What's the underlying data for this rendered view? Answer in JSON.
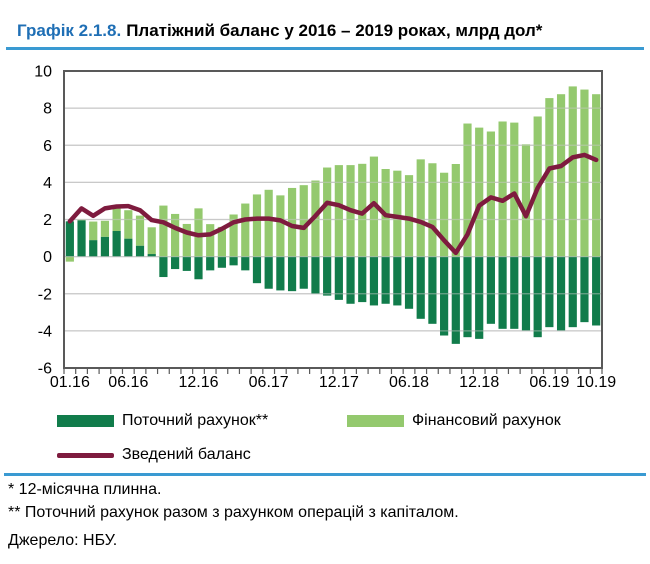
{
  "title": {
    "prefix": "Графік 2.1.8.",
    "text": "Платіжний баланс у 2016 – 2019 роках, млрд дол*"
  },
  "colors": {
    "title_blue": "#1f6fb5",
    "rule_blue": "#3a9ad2",
    "current_account": "#117c4b",
    "financial_account": "#94c96e",
    "balance_line": "#7e1b3e",
    "plot_border": "#595959",
    "gridline": "#c9c9c9",
    "text": "#000000"
  },
  "chart_data": {
    "type": "bar",
    "subtype": "stacked bars with line overlay, 12-month rolling values",
    "ylim": [
      -6,
      10
    ],
    "y_ticks": [
      10,
      8,
      6,
      4,
      2,
      0,
      -2,
      -4,
      -6
    ],
    "grid": true,
    "legend_position": "bottom",
    "xlabel": "",
    "ylabel": "",
    "categories": [
      "01.16",
      "02.16",
      "03.16",
      "04.16",
      "05.16",
      "06.16",
      "07.16",
      "08.16",
      "09.16",
      "10.16",
      "11.16",
      "12.16",
      "01.17",
      "02.17",
      "03.17",
      "04.17",
      "05.17",
      "06.17",
      "07.17",
      "08.17",
      "09.17",
      "10.17",
      "11.17",
      "12.17",
      "01.18",
      "02.18",
      "03.18",
      "04.18",
      "05.18",
      "06.18",
      "07.18",
      "08.18",
      "09.18",
      "10.18",
      "11.18",
      "12.18",
      "01.19",
      "02.19",
      "03.19",
      "04.19",
      "05.19",
      "06.19",
      "07.19",
      "08.19",
      "09.19",
      "10.19"
    ],
    "x_tick_labels": [
      "01.16",
      "06.16",
      "12.16",
      "06.17",
      "12.17",
      "06.18",
      "12.18",
      "06.19",
      "10.19"
    ],
    "x_tick_label_month_index": [
      1,
      6,
      12,
      18,
      24,
      30,
      36,
      42,
      46
    ],
    "series": [
      {
        "name": "Поточний рахунок**",
        "type": "bar",
        "color": "#117c4b",
        "values": [
          1.9,
          1.96,
          0.89,
          1.07,
          1.38,
          0.97,
          0.59,
          0.14,
          -1.1,
          -0.67,
          -0.77,
          -1.22,
          -0.74,
          -0.6,
          -0.47,
          -0.74,
          -1.43,
          -1.73,
          -1.82,
          -1.86,
          -1.73,
          -2.0,
          -2.1,
          -2.33,
          -2.54,
          -2.45,
          -2.63,
          -2.54,
          -2.63,
          -2.81,
          -3.35,
          -3.62,
          -4.25,
          -4.7,
          -4.34,
          -4.43,
          -3.62,
          -3.89,
          -3.89,
          -3.98,
          -4.34,
          -3.8,
          -3.98,
          -3.8,
          -3.53,
          -3.71
        ]
      },
      {
        "name": "Фінансовий рахунок",
        "type": "bar",
        "color": "#94c96e",
        "values": [
          -0.27,
          0.03,
          1.0,
          0.86,
          1.32,
          1.53,
          1.62,
          1.44,
          2.75,
          2.3,
          1.76,
          2.6,
          1.75,
          1.6,
          2.27,
          2.86,
          3.35,
          3.6,
          3.3,
          3.7,
          3.85,
          4.1,
          4.8,
          4.93,
          4.93,
          5.0,
          5.39,
          4.72,
          4.63,
          4.39,
          5.24,
          5.03,
          4.52,
          4.99,
          7.17,
          6.95,
          6.74,
          7.28,
          7.22,
          6.05,
          7.55,
          8.54,
          8.75,
          9.17,
          9.0,
          8.75
        ]
      },
      {
        "name": "Зведений баланс",
        "type": "line",
        "color": "#7e1b3e",
        "values": [
          1.9,
          2.6,
          2.2,
          2.6,
          2.7,
          2.72,
          2.5,
          1.97,
          1.85,
          1.55,
          1.3,
          1.15,
          1.2,
          1.5,
          1.85,
          2.0,
          2.05,
          2.05,
          1.95,
          1.65,
          1.55,
          2.2,
          2.9,
          2.77,
          2.5,
          2.32,
          2.88,
          2.23,
          2.14,
          2.05,
          1.87,
          1.6,
          0.88,
          0.2,
          1.2,
          2.75,
          3.19,
          3.01,
          3.4,
          2.18,
          3.7,
          4.75,
          4.88,
          5.35,
          5.48,
          5.21
        ]
      }
    ]
  },
  "legend": {
    "items": [
      {
        "label": "Поточний рахунок**",
        "marker": "rect"
      },
      {
        "label": "Фінансовий рахунок",
        "marker": "rect"
      },
      {
        "label": "Зведений баланс",
        "marker": "line"
      }
    ]
  },
  "footnotes": [
    "* 12-місячна плинна.",
    "** Поточний рахунок разом з рахунком операцій з капіталом."
  ],
  "source": "Джерело: НБУ."
}
